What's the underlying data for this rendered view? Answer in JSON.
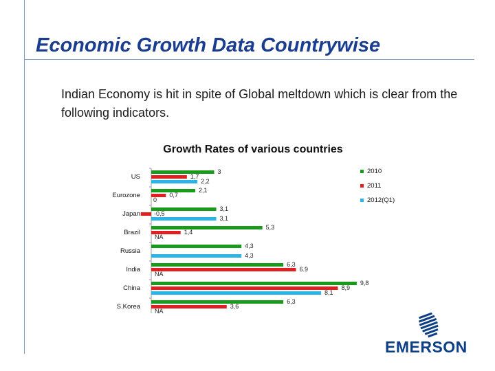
{
  "slide": {
    "title": "Economic Growth Data Countrywise",
    "subtitle": "Indian Economy is hit in spite of Global meltdown which is clear from the following indicators."
  },
  "brand": {
    "name": "EMERSON",
    "color": "#0d3f87",
    "icon": "emerson-logo-icon"
  },
  "chart_data": {
    "type": "bar",
    "orientation": "horizontal",
    "title": "Growth Rates of various countries",
    "categories": [
      "US",
      "Eurozone",
      "Japan",
      "Brazil",
      "Russia",
      "India",
      "China",
      "S.Korea"
    ],
    "series": [
      {
        "name": "2010",
        "color": "#1a9a1a",
        "values": [
          3,
          2.1,
          3.1,
          5.3,
          4.3,
          6.3,
          9.8,
          6.3
        ],
        "labels": [
          "3",
          "2,1",
          "3,1",
          "5,3",
          "4,3",
          "6,3",
          "9,8",
          "6,3"
        ]
      },
      {
        "name": "2011",
        "color": "#e02020",
        "values": [
          1.7,
          0.7,
          -0.5,
          1.4,
          null,
          6.9,
          8.9,
          3.6
        ],
        "labels": [
          "1,7",
          "0,7",
          "-0,5",
          "1,4",
          "",
          "6.9",
          "8,9",
          "3,6"
        ]
      },
      {
        "name": "2012(Q1)",
        "color": "#2bb5e6",
        "values": [
          2.2,
          0,
          3.1,
          null,
          4.3,
          null,
          8.1,
          null
        ],
        "labels": [
          "2,2",
          "0",
          "3,1",
          "NA",
          "4,3",
          "NA",
          "8,1",
          "NA"
        ]
      }
    ],
    "xlim": [
      0,
      10
    ],
    "legend_position": "right"
  }
}
